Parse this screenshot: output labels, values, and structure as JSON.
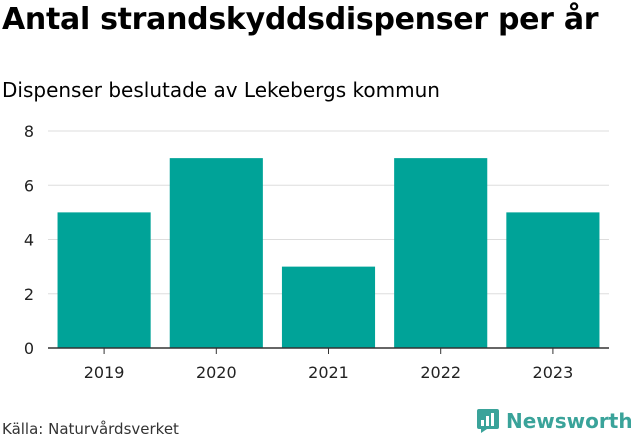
{
  "header": {
    "title": "Antal strandskyddsdispenser per år",
    "subtitle": "Dispenser beslutade av Lekebergs kommun"
  },
  "footer": {
    "source": "Källa: Naturvårdsverket",
    "brand": "Newsworthy",
    "brand_color": "#3aa39a"
  },
  "chart_data": {
    "type": "bar",
    "title": "Antal strandskyddsdispenser per år",
    "subtitle": "Dispenser beslutade av Lekebergs kommun",
    "categories": [
      "2019",
      "2020",
      "2021",
      "2022",
      "2023"
    ],
    "values": [
      5,
      7,
      3,
      7,
      5
    ],
    "xlabel": "",
    "ylabel": "",
    "ylim": [
      0,
      8
    ],
    "yticks": [
      "0",
      "2",
      "4",
      "6",
      "8"
    ],
    "grid": true,
    "bar_color": "#00a398"
  }
}
